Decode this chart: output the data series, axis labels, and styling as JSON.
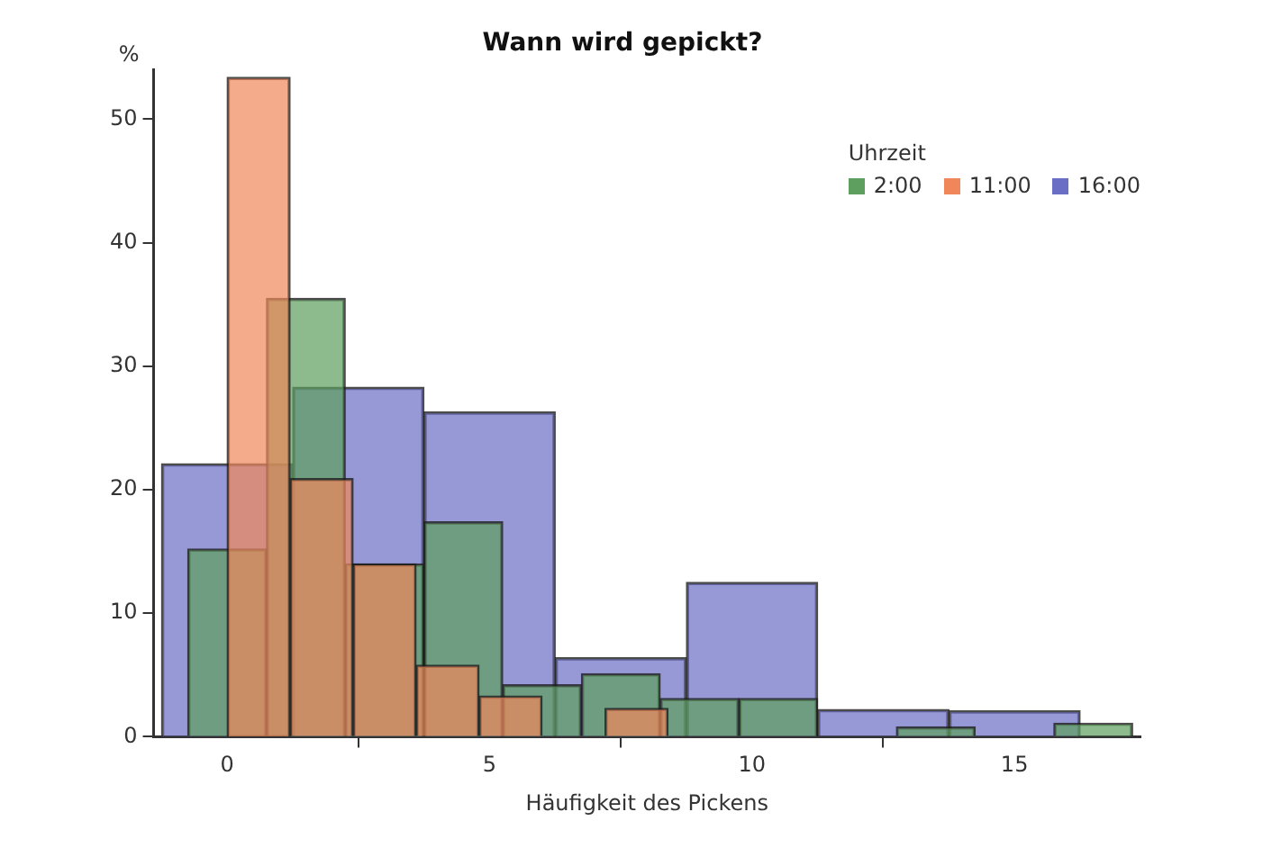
{
  "chart_data": {
    "type": "bar",
    "title": "Wann wird gepickt?",
    "xlabel": "Häufigkeit des Pickens",
    "ylabel": "%",
    "legend_title": "Uhrzeit",
    "legend": "top right",
    "grid": false,
    "xlim": [
      -1.4,
      17.4
    ],
    "xticks": [
      0,
      5,
      10,
      15
    ],
    "ylim": [
      0,
      54
    ],
    "yticks": [
      0,
      10,
      20,
      30,
      40,
      50
    ],
    "series": [
      {
        "name": "2:00",
        "color": "#5e9e5e",
        "x": [
          0,
          1.5,
          3,
          4.5,
          6,
          7.5,
          9,
          10.5,
          12,
          13.5,
          15,
          16.5
        ],
        "values": [
          15.2,
          35.5,
          14,
          17.4,
          4.2,
          5.1,
          3.1,
          3.1,
          0,
          0.8,
          0,
          1.1
        ]
      },
      {
        "name": "11:00",
        "color": "#f0875a",
        "x": [
          0.6,
          1.8,
          3.0,
          4.2,
          5.4,
          6.6,
          7.8
        ],
        "values": [
          53.4,
          20.9,
          14,
          5.8,
          3.3,
          0,
          2.3
        ]
      },
      {
        "name": "16:00",
        "color": "#6a6ec4",
        "x": [
          0,
          2.5,
          5,
          7.5,
          10,
          12.5,
          15
        ],
        "values": [
          22.1,
          28.3,
          26.3,
          6.4,
          12.5,
          2.2,
          2.1
        ]
      }
    ]
  }
}
